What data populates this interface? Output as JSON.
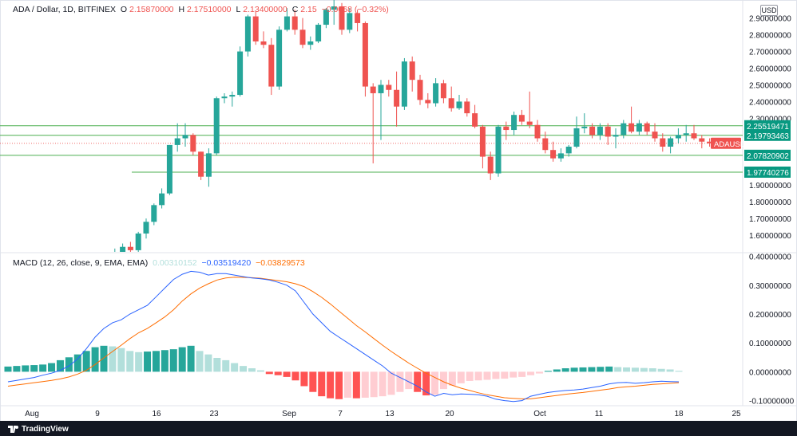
{
  "header": {
    "symbol": "ADA / Dollar, 1D, BITFINEX",
    "o_label": "O",
    "o_value": "2.15870000",
    "h_label": "H",
    "h_value": "2.17510000",
    "l_label": "L",
    "l_value": "2.13400000",
    "c_label": "C",
    "c_value": "2.15",
    "change": "−0.0068",
    "change_pct": "(−0.32%)"
  },
  "currency_button": "USD",
  "macd_legend": {
    "title": "MACD (12, 26, close, 9, EMA, EMA)",
    "hist_value": "0.00310152",
    "macd_value": "−0.03519420",
    "signal_value": "−0.03829573"
  },
  "price_axis": {
    "ticks": [
      "2.90000000",
      "2.80000000",
      "2.70000000",
      "2.60000000",
      "2.50000000",
      "2.40000000",
      "2.30000000",
      "1.90000000",
      "1.80000000",
      "1.70000000",
      "1.60000000"
    ],
    "levels": [
      {
        "value": "2.25519471",
        "color": "#089981"
      },
      {
        "value": "2.19793463",
        "color": "#089981"
      },
      {
        "value": "2.07820902",
        "color": "#089981"
      },
      {
        "value": "1.97740276",
        "color": "#089981"
      }
    ],
    "symbol_tag": "ADAUSD",
    "symbol_tag_color": "#ef5350"
  },
  "macd_axis": {
    "ticks": [
      "0.40000000",
      "0.30000000",
      "0.20000000",
      "0.10000000",
      "0.00000000",
      "-0.10000000"
    ]
  },
  "time_axis": {
    "ticks": [
      "Aug",
      "9",
      "16",
      "23",
      "Sep",
      "7",
      "13",
      "20",
      "Oct",
      "11",
      "18",
      "25"
    ]
  },
  "brand": "TradingView",
  "colors": {
    "up": "#26a69a",
    "down": "#ef5350",
    "macd_line": "#2962ff",
    "signal_line": "#ff6d00",
    "hist_up_strong": "#26a69a",
    "hist_up_weak": "#b2dfdb",
    "hist_down_strong": "#ff5252",
    "hist_down_weak": "#ffcdd2",
    "level_line": "#4caf50"
  },
  "chart_data": {
    "type": "candlestick",
    "title": "ADA / Dollar, 1D, BITFINEX",
    "price_ylim": [
      1.5,
      2.97
    ],
    "candles": [
      {
        "o": 1.42,
        "h": 1.47,
        "l": 1.4,
        "c": 1.46
      },
      {
        "o": 1.46,
        "h": 1.52,
        "l": 1.43,
        "c": 1.5
      },
      {
        "o": 1.5,
        "h": 1.55,
        "l": 1.47,
        "c": 1.53
      },
      {
        "o": 1.53,
        "h": 1.56,
        "l": 1.49,
        "c": 1.51
      },
      {
        "o": 1.51,
        "h": 1.62,
        "l": 1.5,
        "c": 1.61
      },
      {
        "o": 1.61,
        "h": 1.7,
        "l": 1.58,
        "c": 1.68
      },
      {
        "o": 1.68,
        "h": 1.79,
        "l": 1.66,
        "c": 1.78
      },
      {
        "o": 1.78,
        "h": 1.88,
        "l": 1.76,
        "c": 1.85
      },
      {
        "o": 1.85,
        "h": 2.14,
        "l": 1.84,
        "c": 2.14
      },
      {
        "o": 2.14,
        "h": 2.27,
        "l": 2.1,
        "c": 2.18
      },
      {
        "o": 2.18,
        "h": 2.27,
        "l": 2.13,
        "c": 2.2
      },
      {
        "o": 2.2,
        "h": 2.21,
        "l": 2.08,
        "c": 2.1
      },
      {
        "o": 2.1,
        "h": 2.1,
        "l": 1.93,
        "c": 1.95
      },
      {
        "o": 1.95,
        "h": 2.12,
        "l": 1.89,
        "c": 2.09
      },
      {
        "o": 2.09,
        "h": 2.43,
        "l": 2.08,
        "c": 2.42
      },
      {
        "o": 2.42,
        "h": 2.45,
        "l": 2.39,
        "c": 2.43
      },
      {
        "o": 2.43,
        "h": 2.46,
        "l": 2.37,
        "c": 2.44
      },
      {
        "o": 2.44,
        "h": 2.73,
        "l": 2.43,
        "c": 2.7
      },
      {
        "o": 2.7,
        "h": 2.92,
        "l": 2.67,
        "c": 2.91
      },
      {
        "o": 2.91,
        "h": 2.94,
        "l": 2.74,
        "c": 2.76
      },
      {
        "o": 2.76,
        "h": 2.82,
        "l": 2.72,
        "c": 2.74
      },
      {
        "o": 2.74,
        "h": 2.78,
        "l": 2.44,
        "c": 2.49
      },
      {
        "o": 2.49,
        "h": 2.85,
        "l": 2.47,
        "c": 2.83
      },
      {
        "o": 2.83,
        "h": 2.96,
        "l": 2.82,
        "c": 2.91
      },
      {
        "o": 2.91,
        "h": 2.95,
        "l": 2.8,
        "c": 2.83
      },
      {
        "o": 2.83,
        "h": 2.9,
        "l": 2.72,
        "c": 2.74
      },
      {
        "o": 2.74,
        "h": 2.79,
        "l": 2.71,
        "c": 2.76
      },
      {
        "o": 2.76,
        "h": 2.87,
        "l": 2.75,
        "c": 2.86
      },
      {
        "o": 2.86,
        "h": 2.96,
        "l": 2.84,
        "c": 2.95
      },
      {
        "o": 2.95,
        "h": 3.1,
        "l": 2.86,
        "c": 2.97
      },
      {
        "o": 2.97,
        "h": 2.99,
        "l": 2.8,
        "c": 2.83
      },
      {
        "o": 2.83,
        "h": 2.96,
        "l": 2.81,
        "c": 2.93
      },
      {
        "o": 2.93,
        "h": 2.95,
        "l": 2.82,
        "c": 2.87
      },
      {
        "o": 2.87,
        "h": 2.88,
        "l": 2.43,
        "c": 2.49
      },
      {
        "o": 2.49,
        "h": 2.51,
        "l": 2.03,
        "c": 2.45
      },
      {
        "o": 2.45,
        "h": 2.53,
        "l": 2.17,
        "c": 2.5
      },
      {
        "o": 2.5,
        "h": 2.53,
        "l": 2.43,
        "c": 2.47
      },
      {
        "o": 2.47,
        "h": 2.58,
        "l": 2.25,
        "c": 2.37
      },
      {
        "o": 2.37,
        "h": 2.66,
        "l": 2.35,
        "c": 2.64
      },
      {
        "o": 2.64,
        "h": 2.67,
        "l": 2.46,
        "c": 2.53
      },
      {
        "o": 2.53,
        "h": 2.56,
        "l": 2.38,
        "c": 2.41
      },
      {
        "o": 2.41,
        "h": 2.45,
        "l": 2.36,
        "c": 2.39
      },
      {
        "o": 2.39,
        "h": 2.54,
        "l": 2.37,
        "c": 2.51
      },
      {
        "o": 2.51,
        "h": 2.53,
        "l": 2.39,
        "c": 2.42
      },
      {
        "o": 2.42,
        "h": 2.49,
        "l": 2.34,
        "c": 2.36
      },
      {
        "o": 2.36,
        "h": 2.44,
        "l": 2.35,
        "c": 2.4
      },
      {
        "o": 2.4,
        "h": 2.42,
        "l": 2.31,
        "c": 2.33
      },
      {
        "o": 2.33,
        "h": 2.38,
        "l": 2.24,
        "c": 2.25
      },
      {
        "o": 2.25,
        "h": 2.26,
        "l": 2.0,
        "c": 2.07
      },
      {
        "o": 2.07,
        "h": 2.1,
        "l": 1.93,
        "c": 1.97
      },
      {
        "o": 1.97,
        "h": 2.26,
        "l": 1.95,
        "c": 2.25
      },
      {
        "o": 2.25,
        "h": 2.28,
        "l": 2.17,
        "c": 2.23
      },
      {
        "o": 2.23,
        "h": 2.34,
        "l": 2.2,
        "c": 2.32
      },
      {
        "o": 2.32,
        "h": 2.35,
        "l": 2.26,
        "c": 2.28
      },
      {
        "o": 2.28,
        "h": 2.46,
        "l": 2.24,
        "c": 2.26
      },
      {
        "o": 2.26,
        "h": 2.29,
        "l": 2.16,
        "c": 2.18
      },
      {
        "o": 2.18,
        "h": 2.22,
        "l": 2.09,
        "c": 2.11
      },
      {
        "o": 2.11,
        "h": 2.16,
        "l": 2.04,
        "c": 2.06
      },
      {
        "o": 2.06,
        "h": 2.12,
        "l": 2.04,
        "c": 2.09
      },
      {
        "o": 2.09,
        "h": 2.14,
        "l": 2.07,
        "c": 2.13
      },
      {
        "o": 2.13,
        "h": 2.31,
        "l": 2.12,
        "c": 2.24
      },
      {
        "o": 2.24,
        "h": 2.33,
        "l": 2.21,
        "c": 2.25
      },
      {
        "o": 2.25,
        "h": 2.27,
        "l": 2.18,
        "c": 2.2
      },
      {
        "o": 2.2,
        "h": 2.27,
        "l": 2.17,
        "c": 2.25
      },
      {
        "o": 2.25,
        "h": 2.27,
        "l": 2.14,
        "c": 2.19
      },
      {
        "o": 2.19,
        "h": 2.24,
        "l": 2.12,
        "c": 2.2
      },
      {
        "o": 2.2,
        "h": 2.29,
        "l": 2.18,
        "c": 2.27
      },
      {
        "o": 2.27,
        "h": 2.37,
        "l": 2.21,
        "c": 2.22
      },
      {
        "o": 2.22,
        "h": 2.29,
        "l": 2.2,
        "c": 2.27
      },
      {
        "o": 2.27,
        "h": 2.28,
        "l": 2.2,
        "c": 2.22
      },
      {
        "o": 2.22,
        "h": 2.27,
        "l": 2.16,
        "c": 2.18
      },
      {
        "o": 2.18,
        "h": 2.21,
        "l": 2.1,
        "c": 2.13
      },
      {
        "o": 2.13,
        "h": 2.19,
        "l": 2.09,
        "c": 2.18
      },
      {
        "o": 2.18,
        "h": 2.24,
        "l": 2.15,
        "c": 2.2
      },
      {
        "o": 2.2,
        "h": 2.26,
        "l": 2.16,
        "c": 2.21
      },
      {
        "o": 2.21,
        "h": 2.26,
        "l": 2.17,
        "c": 2.18
      },
      {
        "o": 2.18,
        "h": 2.2,
        "l": 2.12,
        "c": 2.16
      },
      {
        "o": 2.16,
        "h": 2.18,
        "l": 2.13,
        "c": 2.15
      }
    ],
    "macd_ylim": [
      -0.115,
      0.41
    ],
    "histogram": [
      0.018,
      0.02,
      0.022,
      0.023,
      0.025,
      0.03,
      0.04,
      0.05,
      0.06,
      0.072,
      0.085,
      0.09,
      0.088,
      0.082,
      0.072,
      0.068,
      0.07,
      0.072,
      0.075,
      0.078,
      0.085,
      0.09,
      0.072,
      0.06,
      0.048,
      0.04,
      0.03,
      0.02,
      0.012,
      0.005,
      -0.008,
      -0.012,
      -0.018,
      -0.03,
      -0.05,
      -0.07,
      -0.085,
      -0.092,
      -0.095,
      -0.09,
      -0.092,
      -0.09,
      -0.088,
      -0.085,
      -0.08,
      -0.07,
      -0.06,
      -0.07,
      -0.082,
      -0.08,
      -0.06,
      -0.048,
      -0.04,
      -0.032,
      -0.03,
      -0.028,
      -0.025,
      -0.024,
      -0.02,
      -0.018,
      -0.012,
      -0.006,
      0.003,
      0.008,
      0.012,
      0.014,
      0.015,
      0.016,
      0.017,
      0.018,
      0.016,
      0.015,
      0.014,
      0.013,
      0.012,
      0.01,
      0.008,
      0.003
    ],
    "macd_line": [
      -0.035,
      -0.03,
      -0.025,
      -0.02,
      -0.012,
      -0.005,
      0.005,
      0.02,
      0.045,
      0.08,
      0.12,
      0.15,
      0.17,
      0.18,
      0.2,
      0.215,
      0.23,
      0.26,
      0.29,
      0.32,
      0.338,
      0.348,
      0.345,
      0.335,
      0.34,
      0.34,
      0.335,
      0.33,
      0.325,
      0.322,
      0.318,
      0.31,
      0.3,
      0.28,
      0.24,
      0.2,
      0.17,
      0.14,
      0.12,
      0.1,
      0.08,
      0.06,
      0.04,
      0.02,
      -0.005,
      -0.02,
      -0.035,
      -0.05,
      -0.07,
      -0.085,
      -0.075,
      -0.08,
      -0.077,
      -0.078,
      -0.08,
      -0.085,
      -0.095,
      -0.1,
      -0.103,
      -0.1,
      -0.085,
      -0.078,
      -0.072,
      -0.068,
      -0.065,
      -0.063,
      -0.06,
      -0.055,
      -0.05,
      -0.042,
      -0.038,
      -0.037,
      -0.04,
      -0.038,
      -0.035,
      -0.033,
      -0.034,
      -0.035
    ],
    "signal_line": [
      -0.05,
      -0.046,
      -0.042,
      -0.038,
      -0.034,
      -0.03,
      -0.025,
      -0.018,
      -0.008,
      0.005,
      0.025,
      0.048,
      0.07,
      0.092,
      0.115,
      0.135,
      0.15,
      0.17,
      0.19,
      0.215,
      0.245,
      0.27,
      0.29,
      0.305,
      0.318,
      0.325,
      0.328,
      0.327,
      0.326,
      0.324,
      0.32,
      0.316,
      0.312,
      0.305,
      0.295,
      0.278,
      0.258,
      0.235,
      0.21,
      0.185,
      0.16,
      0.138,
      0.115,
      0.092,
      0.07,
      0.05,
      0.03,
      0.012,
      -0.005,
      -0.02,
      -0.035,
      -0.047,
      -0.057,
      -0.065,
      -0.073,
      -0.08,
      -0.085,
      -0.09,
      -0.092,
      -0.094,
      -0.094,
      -0.09,
      -0.086,
      -0.082,
      -0.078,
      -0.075,
      -0.072,
      -0.068,
      -0.064,
      -0.06,
      -0.055,
      -0.052,
      -0.05,
      -0.047,
      -0.044,
      -0.042,
      -0.04,
      -0.038
    ]
  }
}
